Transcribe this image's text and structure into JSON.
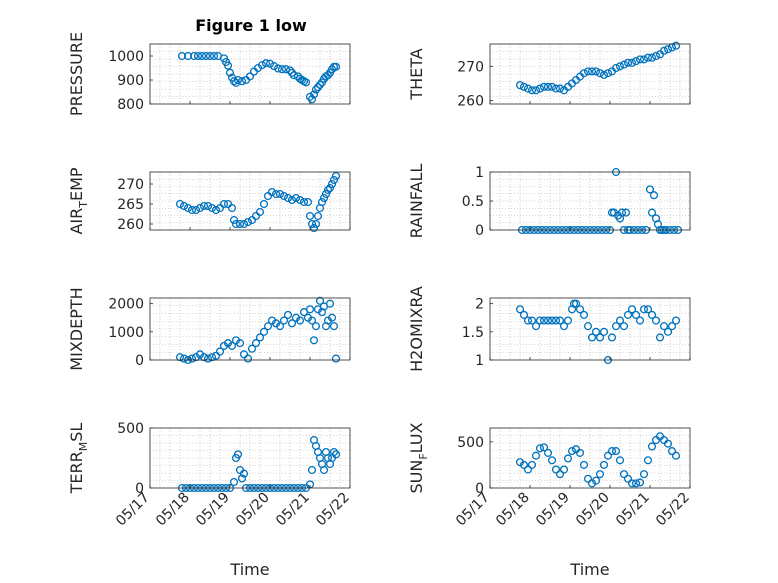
{
  "figure_title": "Figure 1 low",
  "colors": {
    "marker": "#0072BD",
    "axes": "#262626",
    "grid": "#b0b0b0",
    "background": "#ffffff"
  },
  "chart_data": [
    {
      "type": "scatter",
      "panel": "top-left",
      "title": "Figure 1 low",
      "ylabel": "PRESSURE",
      "ylabel_html": {
        "main": "PRESSURE",
        "sub": "",
        "tail": ""
      },
      "xlabel": "",
      "xlim": [
        "05/17",
        "05/22"
      ],
      "ylim": [
        800,
        1050
      ],
      "yticks": [
        800,
        900,
        1000
      ],
      "xticklabels": [],
      "grid": "on (dotted, minor)",
      "series": [
        {
          "x": [
            17.8,
            17.95,
            18.1,
            18.2,
            18.3,
            18.4,
            18.5,
            18.6,
            18.7,
            18.85,
            18.9,
            18.95,
            19.0,
            19.05,
            19.1,
            19.15,
            19.2,
            19.3,
            19.4,
            19.5,
            19.6,
            19.7,
            19.8,
            19.9,
            20.0,
            20.1,
            20.2,
            20.3,
            20.4,
            20.5,
            20.55,
            20.6,
            20.7,
            20.75,
            20.8,
            20.85,
            20.9,
            21.0,
            21.05,
            21.1,
            21.15,
            21.2,
            21.25,
            21.3,
            21.35,
            21.4,
            21.45,
            21.5,
            21.55,
            21.6,
            21.65
          ],
          "y": [
            1000,
            1000,
            1000,
            1000,
            1000,
            1000,
            1000,
            1000,
            1000,
            990,
            975,
            960,
            930,
            910,
            895,
            888,
            900,
            895,
            900,
            915,
            935,
            950,
            962,
            970,
            968,
            958,
            948,
            945,
            945,
            940,
            930,
            920,
            915,
            905,
            900,
            895,
            890,
            830,
            820,
            840,
            860,
            870,
            880,
            890,
            905,
            915,
            920,
            930,
            945,
            955,
            955
          ]
        }
      ]
    },
    {
      "type": "scatter",
      "panel": "top-right",
      "title": "",
      "ylabel": "THETA",
      "ylabel_html": {
        "main": "THETA",
        "sub": "",
        "tail": ""
      },
      "xlabel": "",
      "xlim": [
        "05/17",
        "05/22"
      ],
      "ylim": [
        259,
        276.5
      ],
      "yticks": [
        260,
        270
      ],
      "xticklabels": [],
      "grid": "on (dotted, minor)",
      "series": [
        {
          "x": [
            17.75,
            17.85,
            17.95,
            18.05,
            18.15,
            18.25,
            18.35,
            18.45,
            18.55,
            18.65,
            18.75,
            18.85,
            18.95,
            19.05,
            19.15,
            19.25,
            19.35,
            19.45,
            19.55,
            19.65,
            19.75,
            19.85,
            19.95,
            20.05,
            20.15,
            20.25,
            20.35,
            20.45,
            20.55,
            20.65,
            20.75,
            20.85,
            20.95,
            21.05,
            21.15,
            21.25,
            21.35,
            21.45,
            21.55,
            21.65
          ],
          "y": [
            264.5,
            264,
            263.5,
            263,
            263,
            263.5,
            264,
            264,
            264,
            263.5,
            263.5,
            263,
            264,
            265,
            266,
            267,
            268,
            268.5,
            268.5,
            268.5,
            268,
            267.5,
            268,
            268.5,
            269.5,
            270,
            270.5,
            271,
            271,
            271.5,
            272,
            272,
            272.5,
            272.5,
            273,
            273.5,
            274.5,
            275,
            275.5,
            276
          ]
        }
      ]
    },
    {
      "type": "scatter",
      "panel": "row2-left",
      "title": "",
      "ylabel": "AIR_TEMP",
      "ylabel_html": {
        "main": "AIR",
        "sub": "T",
        "tail": "EMP"
      },
      "xlabel": "",
      "xlim": [
        "05/17",
        "05/22"
      ],
      "ylim": [
        258.5,
        273
      ],
      "yticks": [
        260,
        265,
        270
      ],
      "xticklabels": [],
      "grid": "on (dotted, minor)",
      "series": [
        {
          "x": [
            17.75,
            17.85,
            17.95,
            18.05,
            18.15,
            18.25,
            18.35,
            18.45,
            18.55,
            18.65,
            18.75,
            18.85,
            18.95,
            19.05,
            19.1,
            19.15,
            19.25,
            19.35,
            19.45,
            19.55,
            19.65,
            19.75,
            19.85,
            19.95,
            20.05,
            20.15,
            20.25,
            20.35,
            20.45,
            20.55,
            20.65,
            20.75,
            20.85,
            20.95,
            21.0,
            21.05,
            21.1,
            21.15,
            21.2,
            21.25,
            21.3,
            21.35,
            21.4,
            21.45,
            21.5,
            21.55,
            21.6,
            21.65
          ],
          "y": [
            265,
            264.5,
            264,
            263.5,
            263.5,
            264,
            264.5,
            264.5,
            264,
            263.5,
            264,
            265,
            265,
            264,
            261,
            260,
            260,
            260,
            260.5,
            261,
            262,
            263,
            265,
            267,
            268,
            267.5,
            267.5,
            267,
            266.5,
            266,
            266.5,
            266,
            265.5,
            265.5,
            262,
            260,
            259,
            260,
            262,
            264,
            265.5,
            266.5,
            267.5,
            268.5,
            269,
            270,
            271,
            272
          ]
        }
      ]
    },
    {
      "type": "scatter",
      "panel": "row2-right",
      "title": "",
      "ylabel": "RAINFALL",
      "ylabel_html": {
        "main": "RAINFALL",
        "sub": "",
        "tail": ""
      },
      "xlabel": "",
      "xlim": [
        "05/17",
        "05/22"
      ],
      "ylim": [
        0,
        1
      ],
      "yticks": [
        0,
        0.5,
        1
      ],
      "xticklabels": [],
      "grid": "on (dotted, minor)",
      "series": [
        {
          "x": [
            17.8,
            17.9,
            18.0,
            18.1,
            18.2,
            18.3,
            18.4,
            18.5,
            18.6,
            18.7,
            18.8,
            18.9,
            19.0,
            19.1,
            19.2,
            19.3,
            19.4,
            19.5,
            19.6,
            19.7,
            19.8,
            19.9,
            20.0,
            20.05,
            20.1,
            20.15,
            20.2,
            20.25,
            20.3,
            20.35,
            20.4,
            20.45,
            20.5,
            20.6,
            20.7,
            20.8,
            20.9,
            21.0,
            21.05,
            21.1,
            21.15,
            21.2,
            21.25,
            21.3,
            21.35,
            21.4,
            21.5,
            21.6,
            21.7
          ],
          "y": [
            0,
            0,
            0,
            0,
            0,
            0,
            0,
            0,
            0,
            0,
            0,
            0,
            0,
            0,
            0,
            0,
            0,
            0,
            0,
            0,
            0,
            0,
            0,
            0.3,
            0.3,
            1.0,
            0.25,
            0.2,
            0.3,
            0,
            0.3,
            0,
            0,
            0,
            0,
            0,
            0,
            0.7,
            0.3,
            0.6,
            0.2,
            0.1,
            0,
            0,
            0,
            0,
            0,
            0,
            0
          ]
        }
      ]
    },
    {
      "type": "scatter",
      "panel": "row3-left",
      "title": "",
      "ylabel": "MIXDEPTH",
      "ylabel_html": {
        "main": "MIXDEPTH",
        "sub": "",
        "tail": ""
      },
      "xlabel": "",
      "xlim": [
        "05/17",
        "05/22"
      ],
      "ylim": [
        0,
        2200
      ],
      "yticks": [
        0,
        1000,
        2000
      ],
      "xticklabels": [],
      "grid": "on (dotted, minor)",
      "series": [
        {
          "x": [
            17.75,
            17.85,
            17.95,
            18.05,
            18.15,
            18.25,
            18.35,
            18.45,
            18.55,
            18.65,
            18.75,
            18.85,
            18.95,
            19.05,
            19.15,
            19.25,
            19.35,
            19.45,
            19.55,
            19.65,
            19.75,
            19.85,
            19.95,
            20.05,
            20.15,
            20.25,
            20.35,
            20.45,
            20.55,
            20.65,
            20.75,
            20.85,
            20.95,
            21.0,
            21.05,
            21.1,
            21.15,
            21.2,
            21.25,
            21.3,
            21.35,
            21.4,
            21.45,
            21.5,
            21.55,
            21.6,
            21.65
          ],
          "y": [
            100,
            50,
            0,
            50,
            100,
            200,
            100,
            50,
            100,
            150,
            300,
            500,
            600,
            500,
            700,
            600,
            200,
            50,
            400,
            600,
            800,
            1000,
            1200,
            1400,
            1300,
            1200,
            1400,
            1600,
            1300,
            1500,
            1400,
            1700,
            1500,
            1800,
            1400,
            700,
            1200,
            1800,
            2100,
            1700,
            1900,
            1200,
            1400,
            2000,
            1500,
            1200,
            50
          ]
        }
      ]
    },
    {
      "type": "scatter",
      "panel": "row3-right",
      "title": "",
      "ylabel": "H2OMIXRA",
      "ylabel_html": {
        "main": "H2OMIXRA",
        "sub": "",
        "tail": ""
      },
      "xlabel": "",
      "xlim": [
        "05/17",
        "05/22"
      ],
      "ylim": [
        1,
        2.1
      ],
      "yticks": [
        1,
        1.5,
        2
      ],
      "xticklabels": [],
      "grid": "on (dotted, minor)",
      "series": [
        {
          "x": [
            17.75,
            17.85,
            17.95,
            18.05,
            18.15,
            18.25,
            18.35,
            18.45,
            18.55,
            18.65,
            18.75,
            18.85,
            18.95,
            19.05,
            19.1,
            19.15,
            19.25,
            19.35,
            19.45,
            19.55,
            19.65,
            19.75,
            19.85,
            19.95,
            20.05,
            20.15,
            20.25,
            20.35,
            20.45,
            20.55,
            20.65,
            20.75,
            20.85,
            20.95,
            21.05,
            21.15,
            21.25,
            21.35,
            21.45,
            21.55,
            21.65
          ],
          "y": [
            1.9,
            1.8,
            1.7,
            1.7,
            1.6,
            1.7,
            1.7,
            1.7,
            1.7,
            1.7,
            1.7,
            1.6,
            1.7,
            1.9,
            2.0,
            2.0,
            1.9,
            1.8,
            1.6,
            1.4,
            1.5,
            1.4,
            1.5,
            1.0,
            1.4,
            1.6,
            1.7,
            1.6,
            1.8,
            1.9,
            1.8,
            1.7,
            1.9,
            1.9,
            1.8,
            1.7,
            1.4,
            1.6,
            1.5,
            1.6,
            1.7
          ]
        }
      ]
    },
    {
      "type": "scatter",
      "panel": "row4-left",
      "title": "",
      "ylabel": "TERR_MSL",
      "ylabel_html": {
        "main": "TERR",
        "sub": "M",
        "tail": "SL"
      },
      "xlabel": "Time",
      "xlim": [
        "05/17",
        "05/22"
      ],
      "ylim": [
        0,
        500
      ],
      "yticks": [
        0,
        500
      ],
      "xticklabels": [
        "05/17",
        "05/18",
        "05/19",
        "05/20",
        "05/21",
        "05/22"
      ],
      "grid": "on (dotted, minor)",
      "series": [
        {
          "x": [
            17.8,
            17.9,
            18.0,
            18.1,
            18.2,
            18.3,
            18.4,
            18.5,
            18.6,
            18.7,
            18.8,
            18.9,
            19.0,
            19.1,
            19.15,
            19.2,
            19.25,
            19.3,
            19.35,
            19.4,
            19.5,
            19.6,
            19.7,
            19.8,
            19.9,
            20.0,
            20.1,
            20.2,
            20.3,
            20.4,
            20.5,
            20.6,
            20.7,
            20.8,
            20.9,
            21.0,
            21.05,
            21.1,
            21.15,
            21.2,
            21.25,
            21.3,
            21.35,
            21.4,
            21.45,
            21.5,
            21.55,
            21.6,
            21.65
          ],
          "y": [
            0,
            0,
            0,
            0,
            0,
            0,
            0,
            0,
            0,
            0,
            0,
            0,
            0,
            50,
            250,
            280,
            150,
            80,
            120,
            0,
            0,
            0,
            0,
            0,
            0,
            0,
            0,
            0,
            0,
            0,
            0,
            0,
            0,
            0,
            0,
            30,
            150,
            400,
            350,
            300,
            250,
            200,
            150,
            300,
            250,
            200,
            250,
            300,
            280
          ]
        }
      ]
    },
    {
      "type": "scatter",
      "panel": "row4-right",
      "title": "",
      "ylabel": "SUN_FLUX",
      "ylabel_html": {
        "main": "SUN",
        "sub": "F",
        "tail": "LUX"
      },
      "xlabel": "Time",
      "xlim": [
        "05/17",
        "05/22"
      ],
      "ylim": [
        0,
        650
      ],
      "yticks": [
        0,
        500
      ],
      "xticklabels": [
        "05/17",
        "05/18",
        "05/19",
        "05/20",
        "05/21",
        "05/22"
      ],
      "grid": "on (dotted, minor)",
      "series": [
        {
          "x": [
            17.75,
            17.85,
            17.95,
            18.05,
            18.15,
            18.25,
            18.35,
            18.45,
            18.55,
            18.65,
            18.75,
            18.85,
            18.95,
            19.05,
            19.15,
            19.25,
            19.35,
            19.45,
            19.55,
            19.65,
            19.75,
            19.85,
            19.95,
            20.05,
            20.15,
            20.25,
            20.35,
            20.45,
            20.55,
            20.65,
            20.75,
            20.85,
            20.95,
            21.05,
            21.15,
            21.25,
            21.35,
            21.45,
            21.55,
            21.65
          ],
          "y": [
            280,
            250,
            200,
            250,
            350,
            430,
            440,
            380,
            300,
            200,
            150,
            200,
            320,
            400,
            420,
            380,
            250,
            100,
            50,
            80,
            150,
            250,
            350,
            400,
            400,
            300,
            150,
            100,
            50,
            50,
            60,
            150,
            300,
            450,
            520,
            560,
            520,
            480,
            400,
            350
          ]
        }
      ]
    }
  ]
}
